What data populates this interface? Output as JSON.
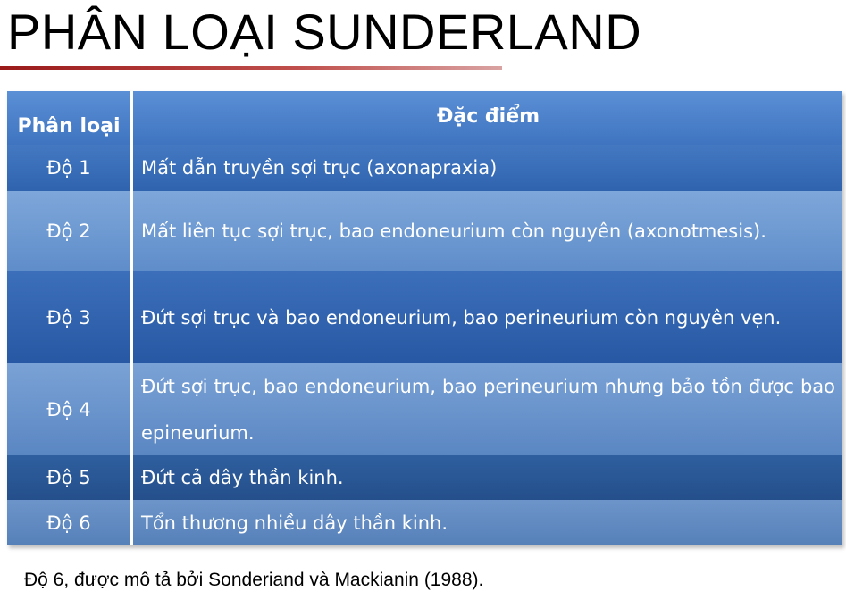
{
  "title": "PHÂN LOẠI SUNDERLAND",
  "table": {
    "headers": {
      "grade": "Phân loại",
      "description": "Đặc điểm"
    },
    "rows": [
      {
        "grade": "Độ 1",
        "description": "Mất dẫn truyền sợi trục (axonapraxia)"
      },
      {
        "grade": "Độ 2",
        "description": "Mất liên tục sợi trục, bao endoneurium còn nguyên (axonotmesis)."
      },
      {
        "grade": "Độ 3",
        "description": "Đứt sợi trục và bao endoneurium, bao perineurium còn nguyên vẹn."
      },
      {
        "grade": "Độ 4",
        "description": "Đứt sợi trục, bao endoneurium, bao perineurium nhưng bảo tồn được bao epineurium."
      },
      {
        "grade": "Độ 5",
        "description": "Đứt cả dây thần kinh."
      },
      {
        "grade": "Độ 6",
        "description": "Tổn thương nhiều dây thần kinh."
      }
    ]
  },
  "footnote": "Độ 6, được mô tả bởi Sonderiand và Mackianin (1988).",
  "colors": {
    "title_rule": "#c0504d",
    "header_bg": "#4f81bd",
    "row_dark": "#2f63ae",
    "row_light": "#6f98cf"
  }
}
